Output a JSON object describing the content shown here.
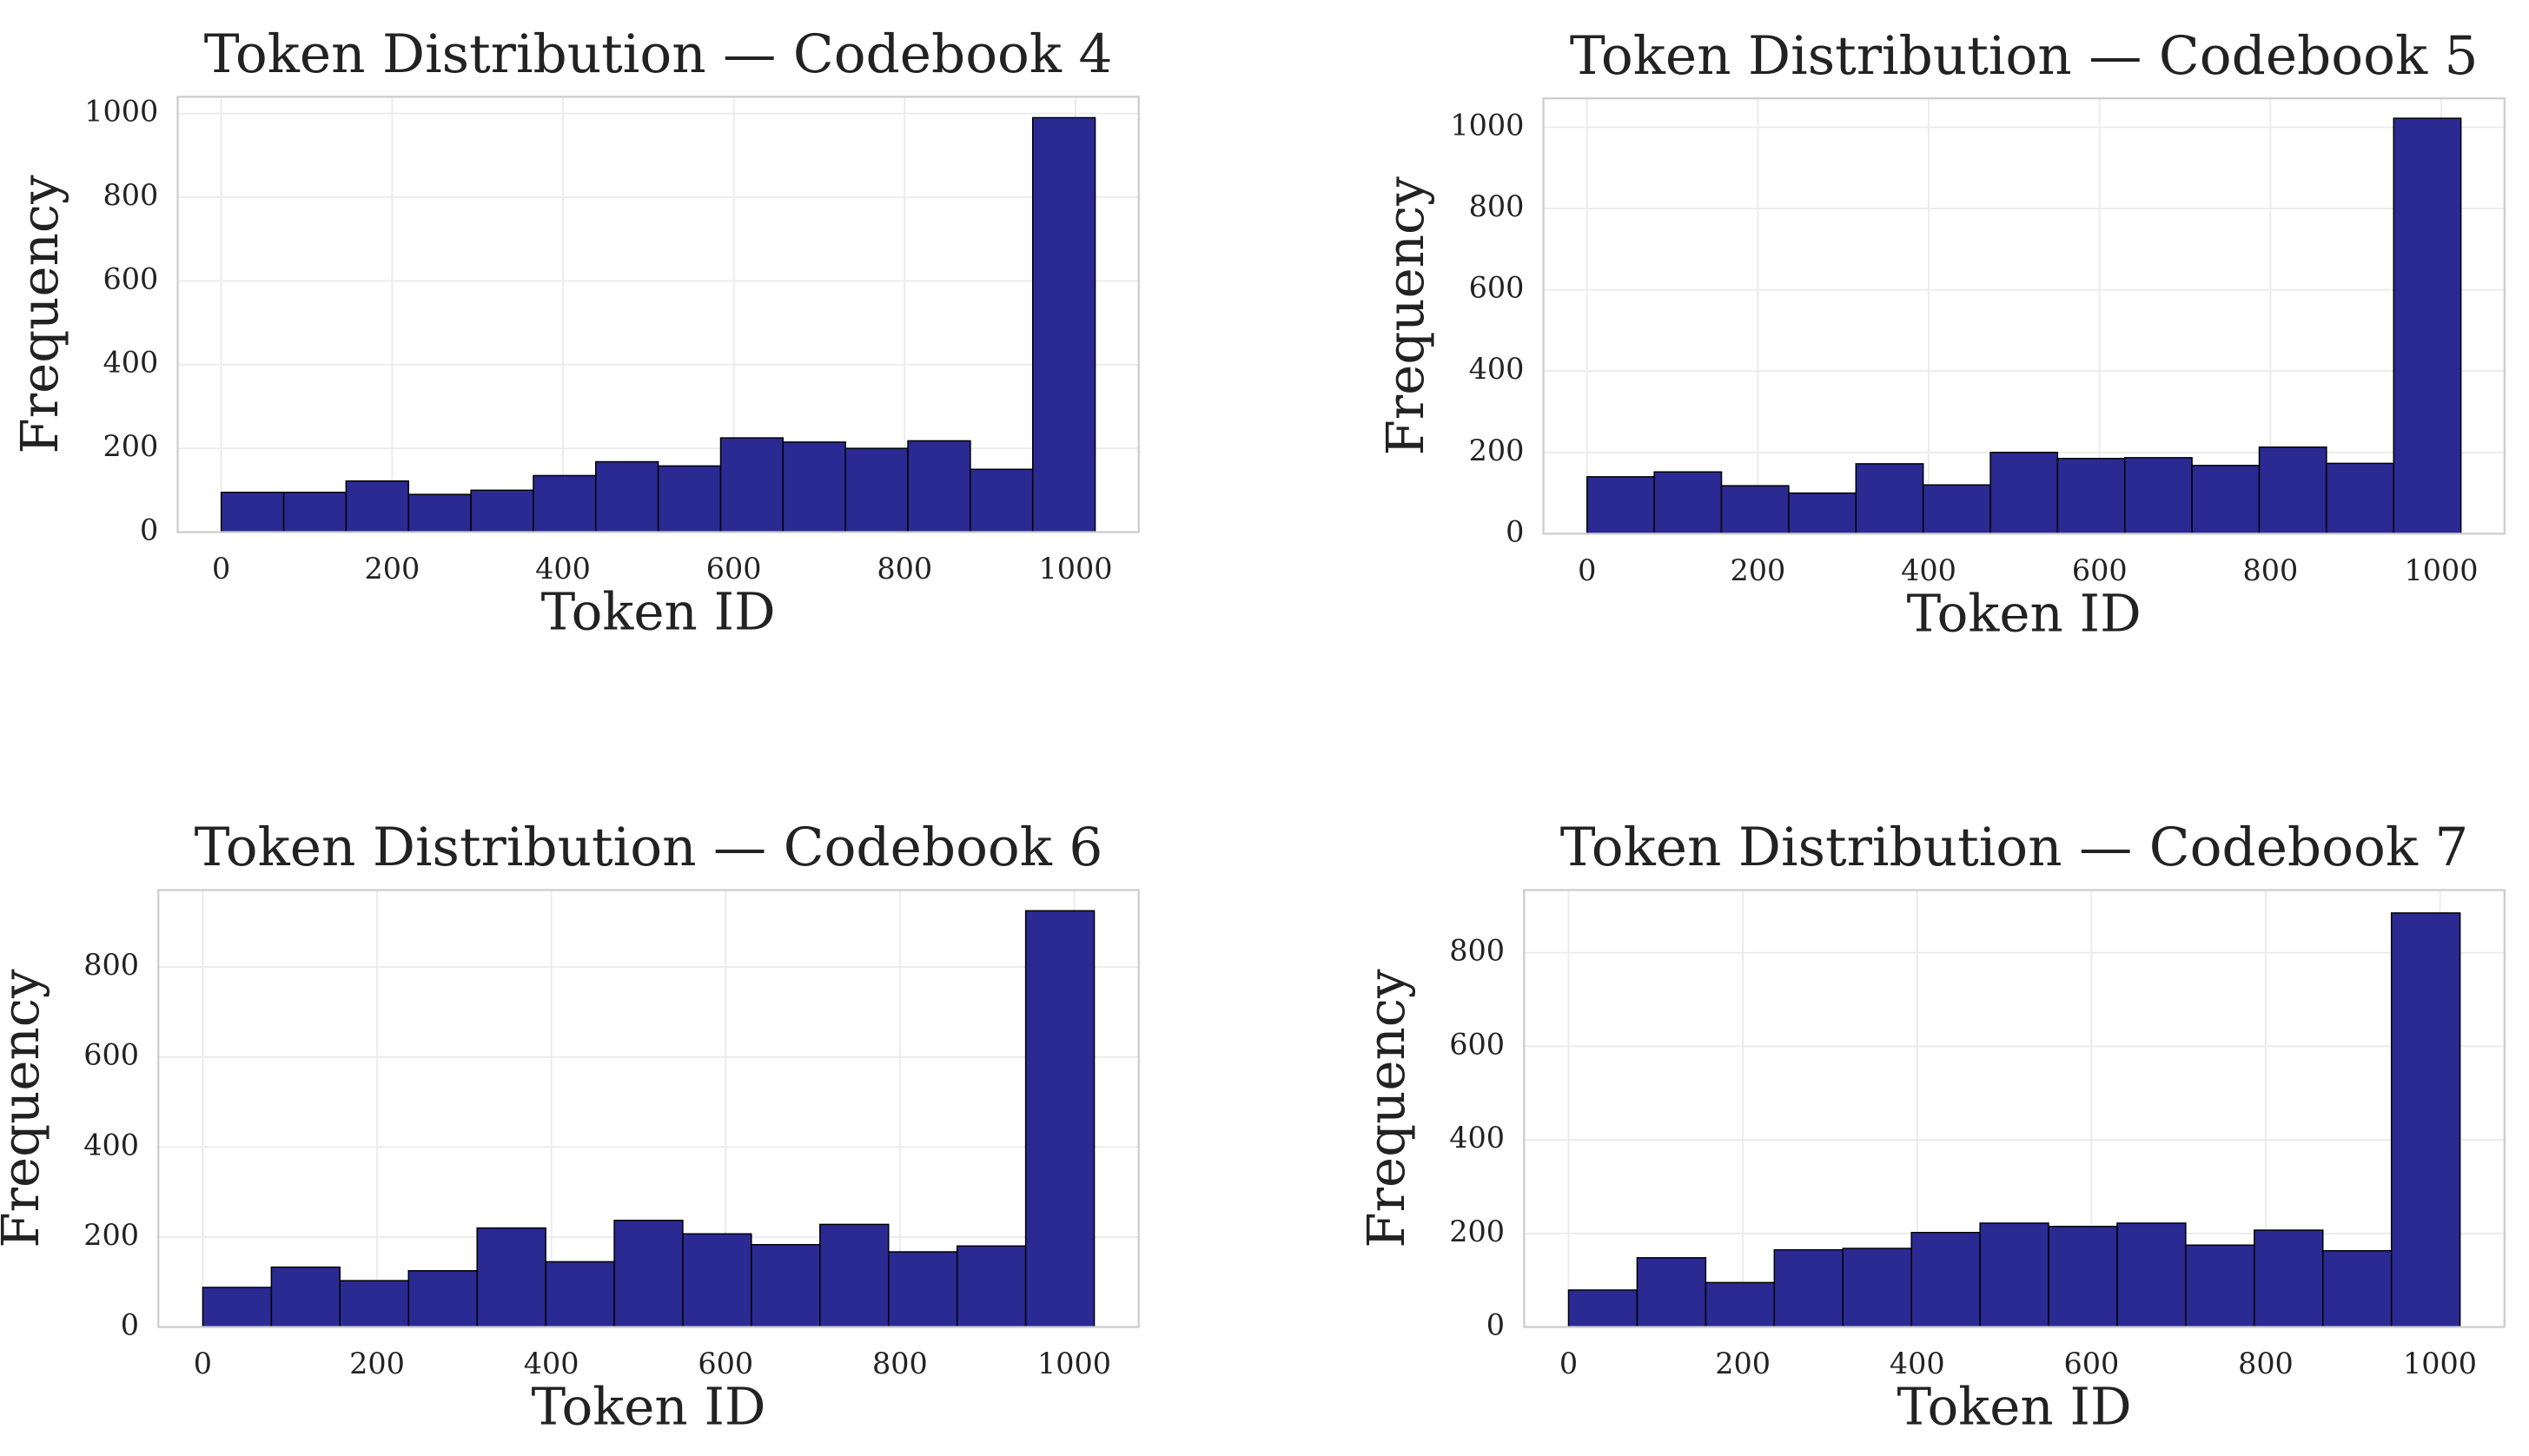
{
  "chart_data": [
    {
      "type": "histogram",
      "title": "Token Distribution — Codebook 4",
      "x_label": "Token ID",
      "y_label": "Frequency",
      "bins": [
        0,
        73.1,
        146.1,
        219.2,
        292.3,
        365.4,
        438.4,
        511.5,
        584.6,
        657.6,
        730.7,
        803.8,
        876.9,
        949.9,
        1023
      ],
      "values": [
        95,
        95,
        122,
        90,
        100,
        135,
        168,
        158,
        225,
        215,
        200,
        218,
        150,
        990
      ],
      "color": "#262690",
      "edgecolor": "#000000",
      "xlim": [
        -51,
        1074
      ],
      "ylim": [
        0,
        1040
      ],
      "xticks": [
        0,
        200,
        400,
        600,
        800,
        1000
      ],
      "yticks": [
        0,
        200,
        400,
        600,
        800,
        1000
      ],
      "grid": true
    },
    {
      "type": "histogram",
      "title": "Token Distribution — Codebook 5",
      "x_label": "Token ID",
      "y_label": "Frequency",
      "bins": [
        0,
        78.7,
        157.4,
        236.1,
        314.8,
        393.5,
        472.2,
        550.8,
        629.5,
        708.2,
        786.9,
        865.6,
        944.3,
        1023
      ],
      "values": [
        140,
        152,
        118,
        100,
        172,
        120,
        200,
        185,
        187,
        168,
        213,
        173,
        1022
      ],
      "color": "#262690",
      "edgecolor": "#000000",
      "xlim": [
        -51,
        1074
      ],
      "ylim": [
        0,
        1071
      ],
      "xticks": [
        0,
        200,
        400,
        600,
        800,
        1000
      ],
      "yticks": [
        0,
        200,
        400,
        600,
        800,
        1000
      ],
      "grid": true
    },
    {
      "type": "histogram",
      "title": "Token Distribution — Codebook 6",
      "x_label": "Token ID",
      "y_label": "Frequency",
      "bins": [
        0,
        78.7,
        157.4,
        236.1,
        314.8,
        393.5,
        472.2,
        550.8,
        629.5,
        708.2,
        786.9,
        865.6,
        944.3,
        1023
      ],
      "values": [
        88,
        133,
        103,
        125,
        220,
        145,
        237,
        207,
        183,
        228,
        167,
        180,
        925
      ],
      "color": "#262690",
      "edgecolor": "#000000",
      "xlim": [
        -51,
        1074
      ],
      "ylim": [
        0,
        971
      ],
      "xticks": [
        0,
        200,
        400,
        600,
        800,
        1000
      ],
      "yticks": [
        0,
        200,
        400,
        600,
        800
      ],
      "grid": true
    },
    {
      "type": "histogram",
      "title": "Token Distribution — Codebook 7",
      "x_label": "Token ID",
      "y_label": "Frequency",
      "bins": [
        0,
        78.7,
        157.4,
        236.1,
        314.8,
        393.5,
        472.2,
        550.8,
        629.5,
        708.2,
        786.9,
        865.6,
        944.3,
        1023
      ],
      "values": [
        79,
        148,
        95,
        165,
        168,
        202,
        222,
        215,
        222,
        175,
        207,
        163,
        885
      ],
      "color": "#262690",
      "edgecolor": "#000000",
      "xlim": [
        -51,
        1074
      ],
      "ylim": [
        0,
        934
      ],
      "xticks": [
        0,
        200,
        400,
        600,
        800,
        1000
      ],
      "yticks": [
        0,
        200,
        400,
        600,
        800
      ],
      "grid": true
    }
  ]
}
